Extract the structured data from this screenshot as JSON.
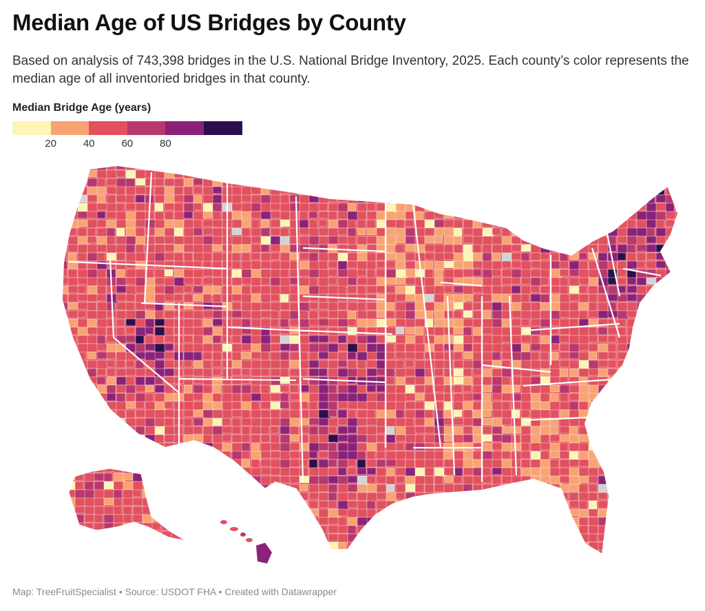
{
  "header": {
    "title": "Median Age of US Bridges by County",
    "subtitle": "Based on analysis of 743,398 bridges in the U.S. National Bridge Inventory, 2025. Each county’s color represents the median age of all inventoried bridges in that county."
  },
  "legend": {
    "title": "Median Bridge Age (years)",
    "bins": [
      {
        "color": "#fcf5b6"
      },
      {
        "color": "#f9a373"
      },
      {
        "color": "#e1515f"
      },
      {
        "color": "#b8386d"
      },
      {
        "color": "#8a2279"
      },
      {
        "color": "#2b0f4c"
      }
    ],
    "ticks": [
      "20",
      "40",
      "60",
      "80"
    ]
  },
  "map": {
    "subject": "US counties choropleth",
    "no_data_color": "#d3d3d3",
    "state_border_color": "#ffffff",
    "dominant_color": "#e1515f"
  },
  "footer": {
    "credit": "Map: TreeFruitSpecialist • Source: USDOT FHA • Created with Datawrapper"
  }
}
